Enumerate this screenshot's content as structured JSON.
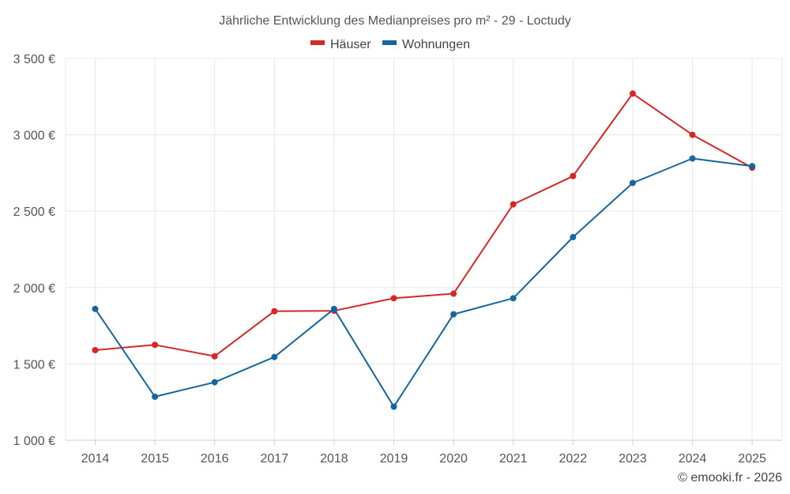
{
  "chart_data": {
    "type": "line",
    "title": "Jährliche Entwicklung des Medianpreises pro m² - 29 - Loctudy",
    "categories": [
      "2014",
      "2015",
      "2016",
      "2017",
      "2018",
      "2019",
      "2020",
      "2021",
      "2022",
      "2023",
      "2024",
      "2025"
    ],
    "series": [
      {
        "name": "Häuser",
        "color": "#d62728",
        "values": [
          1590,
          1625,
          1550,
          1845,
          1848,
          1930,
          1960,
          2545,
          2730,
          3270,
          3000,
          2785
        ]
      },
      {
        "name": "Wohnungen",
        "color": "#1565a0",
        "values": [
          1860,
          1285,
          1380,
          1545,
          1860,
          1220,
          1825,
          1930,
          2330,
          2685,
          2845,
          2795
        ]
      }
    ],
    "ylim": [
      1000,
      3500
    ],
    "yticks": [
      1000,
      1500,
      2000,
      2500,
      3000,
      3500
    ],
    "ytick_labels": [
      "1 000 €",
      "1 500 €",
      "2 000 €",
      "2 500 €",
      "3 000 €",
      "3 500 €"
    ],
    "xlabel": "",
    "ylabel": "",
    "grid": true,
    "legend_position": "top-center"
  },
  "credit": "© emooki.fr - 2026"
}
